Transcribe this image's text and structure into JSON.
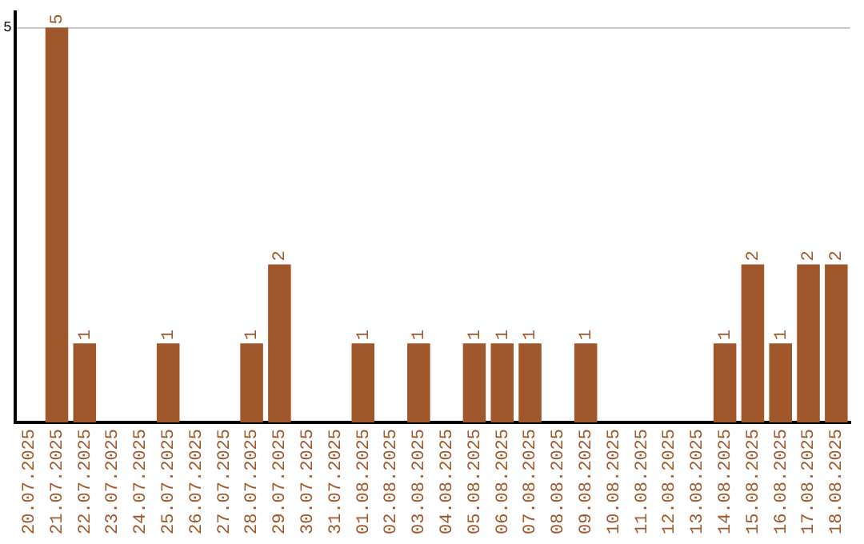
{
  "chart_data": {
    "type": "bar",
    "categories": [
      "20.07.2025",
      "21.07.2025",
      "22.07.2025",
      "23.07.2025",
      "24.07.2025",
      "25.07.2025",
      "26.07.2025",
      "27.07.2025",
      "28.07.2025",
      "29.07.2025",
      "30.07.2025",
      "31.07.2025",
      "01.08.2025",
      "02.08.2025",
      "03.08.2025",
      "04.08.2025",
      "05.08.2025",
      "06.08.2025",
      "07.08.2025",
      "08.08.2025",
      "09.08.2025",
      "10.08.2025",
      "11.08.2025",
      "12.08.2025",
      "13.08.2025",
      "14.08.2025",
      "15.08.2025",
      "16.08.2025",
      "17.08.2025",
      "18.08.2025"
    ],
    "values": [
      0,
      5,
      1,
      0,
      0,
      1,
      0,
      0,
      1,
      2,
      0,
      0,
      1,
      0,
      1,
      0,
      1,
      1,
      1,
      0,
      1,
      0,
      0,
      0,
      0,
      1,
      2,
      1,
      2,
      2
    ],
    "value_labels": [
      null,
      "5",
      "1",
      null,
      null,
      "1",
      null,
      null,
      "1",
      "2",
      null,
      null,
      "1",
      null,
      "1",
      null,
      "1",
      "1",
      "1",
      null,
      "1",
      null,
      null,
      null,
      null,
      "1",
      "2",
      "1",
      "2",
      "2"
    ],
    "color": "#a0572b",
    "ylim": [
      0,
      5.2
    ],
    "yticks": [
      5
    ],
    "grid": "y",
    "legend": false
  }
}
